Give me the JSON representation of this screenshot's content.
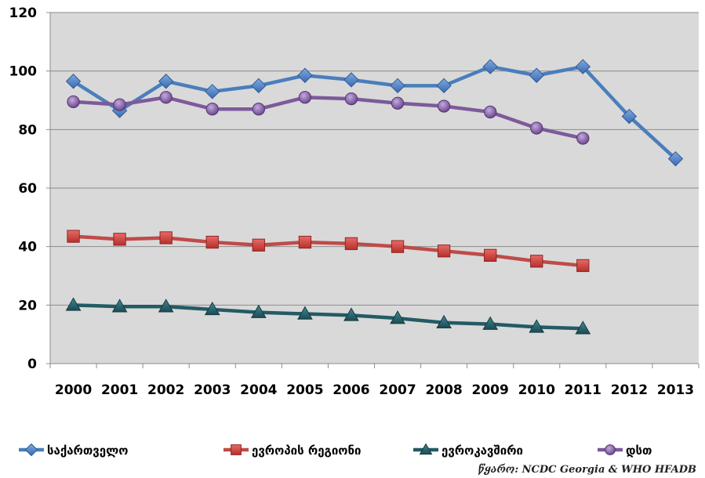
{
  "chart_data": {
    "type": "line",
    "x": [
      "2000",
      "2001",
      "2002",
      "2003",
      "2004",
      "2005",
      "2006",
      "2007",
      "2008",
      "2009",
      "2010",
      "2011",
      "2012",
      "2013"
    ],
    "ylim": [
      0,
      120
    ],
    "yticks": [
      "0",
      "20",
      "40",
      "60",
      "80",
      "100",
      "120"
    ],
    "grid": "horizontal",
    "legend_position": "bottom",
    "series": [
      {
        "name": "საქართველო",
        "color": "#4a7ebb",
        "marker": "diamond",
        "values": [
          96.5,
          86.5,
          96.5,
          93,
          95,
          98.5,
          97,
          95,
          95,
          101.5,
          98.5,
          101.5,
          84.5,
          70
        ]
      },
      {
        "name": "ევროპის რეგიონი",
        "color": "#be4b48",
        "marker": "square",
        "values": [
          43.5,
          42.5,
          43,
          41.5,
          40.5,
          41.5,
          41,
          40,
          38.5,
          37,
          35,
          33.5,
          null,
          null
        ]
      },
      {
        "name": "ევროკავშირი",
        "color": "#235b64",
        "marker": "triangle",
        "values": [
          20,
          19.5,
          19.5,
          18.5,
          17.5,
          17,
          16.5,
          15.5,
          14,
          13.5,
          12.5,
          12,
          null,
          null
        ]
      },
      {
        "name": "დსთ",
        "color": "#7d5a9b",
        "marker": "circle",
        "values": [
          89.5,
          88.5,
          91,
          87,
          87,
          91,
          90.5,
          89,
          88,
          86,
          80.5,
          77,
          null,
          null
        ]
      }
    ],
    "source": "წყარო: NCDC Georgia & WHO HFADB"
  }
}
